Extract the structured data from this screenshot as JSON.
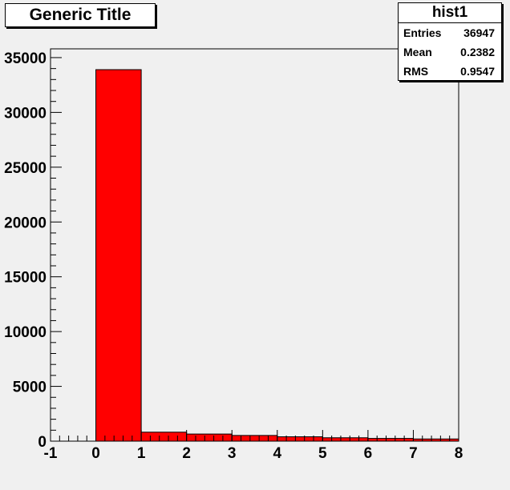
{
  "title": "Generic Title",
  "stats": {
    "name": "hist1",
    "rows": [
      {
        "label": "Entries",
        "value": "36947"
      },
      {
        "label": "Mean",
        "value": "0.2382"
      },
      {
        "label": "RMS",
        "value": "0.9547"
      }
    ]
  },
  "colors": {
    "bar": "#ff0000",
    "frame": "#000000",
    "background": "#f0f0f0"
  },
  "chart_data": {
    "type": "bar",
    "title": "Generic Title",
    "xlim": [
      -1,
      8
    ],
    "ylim": [
      0,
      35800
    ],
    "bin_edges": [
      0,
      1,
      2,
      3,
      4,
      5,
      6,
      7,
      8
    ],
    "values": [
      33900,
      820,
      650,
      520,
      400,
      310,
      250,
      200
    ],
    "x_ticks": [
      "-1",
      "0",
      "1",
      "2",
      "3",
      "4",
      "5",
      "6",
      "7",
      "8"
    ],
    "y_ticks": [
      "0",
      "5000",
      "10000",
      "15000",
      "20000",
      "25000",
      "30000",
      "35000"
    ],
    "grid": false
  }
}
